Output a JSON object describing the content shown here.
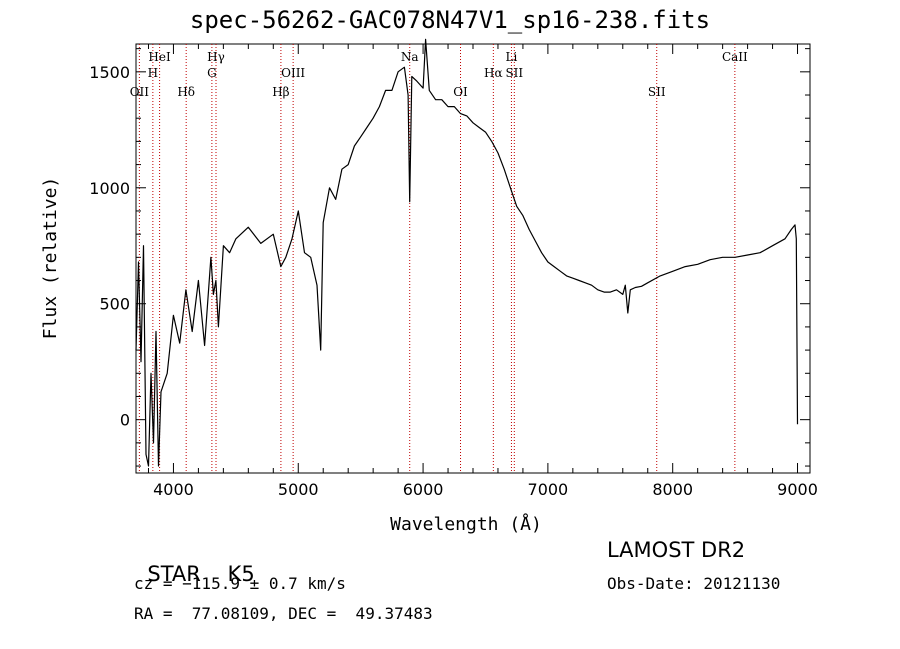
{
  "chart_data": {
    "type": "line",
    "title": "spec-56262-GAC078N47V1_sp16-238.fits",
    "xlabel": "Wavelength (Å)",
    "ylabel": "Flux (relative)",
    "xlim": [
      3700,
      9100
    ],
    "ylim": [
      -230,
      1620
    ],
    "xticks": [
      4000,
      5000,
      6000,
      7000,
      8000,
      9000
    ],
    "yticks": [
      0,
      500,
      1000,
      1500
    ],
    "grid": false,
    "series": [
      {
        "name": "",
        "x": [
          3700,
          3720,
          3740,
          3760,
          3780,
          3800,
          3820,
          3840,
          3860,
          3880,
          3900,
          3950,
          4000,
          4050,
          4100,
          4150,
          4200,
          4250,
          4300,
          4320,
          4340,
          4360,
          4400,
          4450,
          4500,
          4600,
          4700,
          4800,
          4860,
          4900,
          4950,
          5000,
          5050,
          5100,
          5150,
          5180,
          5200,
          5250,
          5300,
          5350,
          5400,
          5450,
          5500,
          5550,
          5600,
          5650,
          5700,
          5750,
          5800,
          5850,
          5880,
          5893,
          5910,
          5950,
          6000,
          6020,
          6050,
          6100,
          6150,
          6200,
          6250,
          6300,
          6350,
          6400,
          6450,
          6500,
          6550,
          6600,
          6650,
          6700,
          6750,
          6800,
          6850,
          6900,
          6950,
          7000,
          7050,
          7100,
          7150,
          7200,
          7250,
          7300,
          7350,
          7400,
          7450,
          7500,
          7550,
          7600,
          7620,
          7640,
          7660,
          7700,
          7750,
          7800,
          7900,
          8000,
          8100,
          8200,
          8300,
          8400,
          8500,
          8600,
          8700,
          8800,
          8900,
          8950,
          8980,
          8990,
          9000
        ],
        "y": [
          300,
          680,
          250,
          750,
          -150,
          -200,
          200,
          -100,
          380,
          -200,
          120,
          200,
          450,
          330,
          560,
          380,
          600,
          320,
          700,
          540,
          600,
          400,
          750,
          720,
          780,
          830,
          760,
          800,
          660,
          700,
          780,
          900,
          720,
          700,
          580,
          300,
          850,
          1000,
          950,
          1080,
          1100,
          1180,
          1220,
          1260,
          1300,
          1350,
          1420,
          1420,
          1500,
          1520,
          1400,
          940,
          1480,
          1460,
          1430,
          1640,
          1420,
          1380,
          1380,
          1350,
          1350,
          1320,
          1310,
          1280,
          1260,
          1240,
          1200,
          1150,
          1080,
          1000,
          920,
          880,
          820,
          770,
          720,
          680,
          660,
          640,
          620,
          610,
          600,
          590,
          580,
          560,
          550,
          550,
          560,
          540,
          580,
          460,
          560,
          570,
          575,
          590,
          620,
          640,
          660,
          670,
          690,
          700,
          700,
          710,
          720,
          750,
          780,
          820,
          840,
          780,
          -20
        ]
      }
    ],
    "lines": {
      "row1": [
        {
          "label": "HeI",
          "x": 3889
        },
        {
          "label": "Hγ",
          "x": 4341
        },
        {
          "label": "Na",
          "x": 5893
        },
        {
          "label": "Li",
          "x": 6708
        },
        {
          "label": "CaII",
          "x": 8498
        }
      ],
      "row2": [
        {
          "label": "H",
          "x": 3835
        },
        {
          "label": "G",
          "x": 4308
        },
        {
          "label": "OIII",
          "x": 4959
        },
        {
          "label": "Hα",
          "x": 6563
        },
        {
          "label": "SII",
          "x": 6731
        }
      ],
      "row3": [
        {
          "label": "OII",
          "x": 3727
        },
        {
          "label": "Hδ",
          "x": 4102
        },
        {
          "label": "Hβ",
          "x": 4861
        },
        {
          "label": "OI",
          "x": 6300
        },
        {
          "label": "SII",
          "x": 7872
        }
      ]
    },
    "colors": {
      "spectrum": "#000000",
      "line_marker": "#c00000"
    }
  },
  "info": {
    "object_class": "STAR",
    "subclass": "K5",
    "survey": "LAMOST DR2",
    "cz": "cz = −115.9 ± 0.7 km/s",
    "obs_date": "Obs-Date: 20121130",
    "coords": "RA =  77.08109, DEC =  49.37483"
  }
}
